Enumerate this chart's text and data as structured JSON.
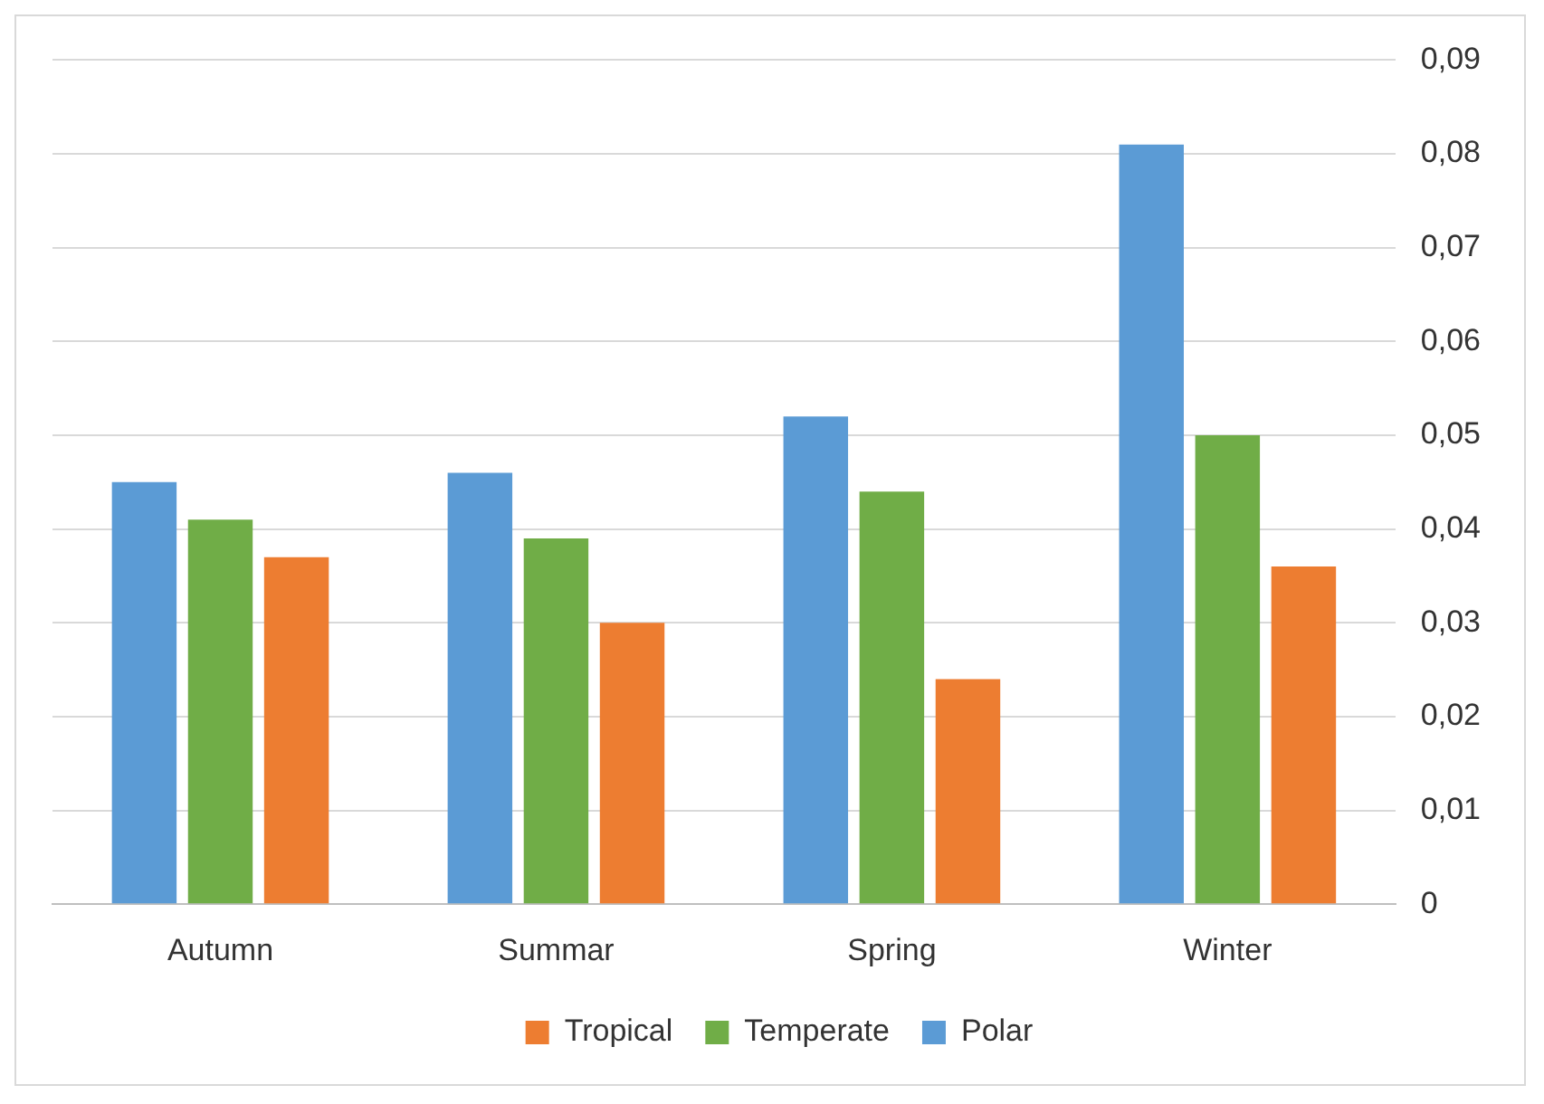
{
  "chart_data": {
    "type": "bar",
    "categories": [
      "Autumn",
      "Summar",
      "Spring",
      "Winter"
    ],
    "series": [
      {
        "name": "Polar",
        "color": "#5b9bd5",
        "values": [
          0.045,
          0.046,
          0.052,
          0.081
        ]
      },
      {
        "name": "Temperate",
        "color": "#70ad47",
        "values": [
          0.041,
          0.039,
          0.044,
          0.05
        ]
      },
      {
        "name": "Tropical",
        "color": "#ed7d31",
        "values": [
          0.037,
          0.03,
          0.024,
          0.036
        ]
      }
    ],
    "ylim": [
      0,
      0.09
    ],
    "yticks": [
      {
        "value": 0,
        "label": "0"
      },
      {
        "value": 0.01,
        "label": "0,01"
      },
      {
        "value": 0.02,
        "label": "0,02"
      },
      {
        "value": 0.03,
        "label": "0,03"
      },
      {
        "value": 0.04,
        "label": "0,04"
      },
      {
        "value": 0.05,
        "label": "0,05"
      },
      {
        "value": 0.06,
        "label": "0,06"
      },
      {
        "value": 0.07,
        "label": "0,07"
      },
      {
        "value": 0.08,
        "label": "0,08"
      },
      {
        "value": 0.09,
        "label": "0,09"
      }
    ],
    "grid": "y",
    "legend": "bottom"
  }
}
